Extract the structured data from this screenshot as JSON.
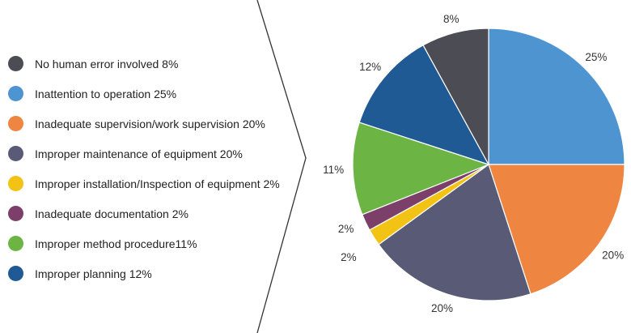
{
  "chart_data": {
    "type": "pie",
    "title": "",
    "slices": [
      {
        "label": "Inattention to operation",
        "legend_text": "Inattention to operation 25%",
        "value": 25,
        "value_label": "25%",
        "color": "#4e94d1"
      },
      {
        "label": "Inadequate supervision/work supervision",
        "legend_text": "Inadequate supervision/work supervision 20%",
        "value": 20,
        "value_label": "20%",
        "color": "#ee8541"
      },
      {
        "label": "Improper maintenance of equipment",
        "legend_text": "Improper maintenance of equipment 20%",
        "value": 20,
        "value_label": "20%",
        "color": "#585a76"
      },
      {
        "label": "Improper installation/Inspection of equipment",
        "legend_text": "Improper installation/Inspection of equipment 2%",
        "value": 2,
        "value_label": "2%",
        "color": "#f2c314"
      },
      {
        "label": "Inadequate documentation",
        "legend_text": "Inadequate documentation 2%",
        "value": 2,
        "value_label": "2%",
        "color": "#7b3f6a"
      },
      {
        "label": "Improper method procedure",
        "legend_text": "Improper method procedure11%",
        "value": 11,
        "value_label": "11%",
        "color": "#6cb545"
      },
      {
        "label": "Improper planning",
        "legend_text": "Improper planning 12%",
        "value": 12,
        "value_label": "12%",
        "color": "#1f5a94"
      },
      {
        "label": "No human error involved",
        "legend_text": "No human error involved 8%",
        "value": 8,
        "value_label": "8%",
        "color": "#4b4c54"
      }
    ],
    "legend_order": [
      7,
      0,
      1,
      2,
      3,
      4,
      5,
      6
    ],
    "legend_position": "left"
  }
}
